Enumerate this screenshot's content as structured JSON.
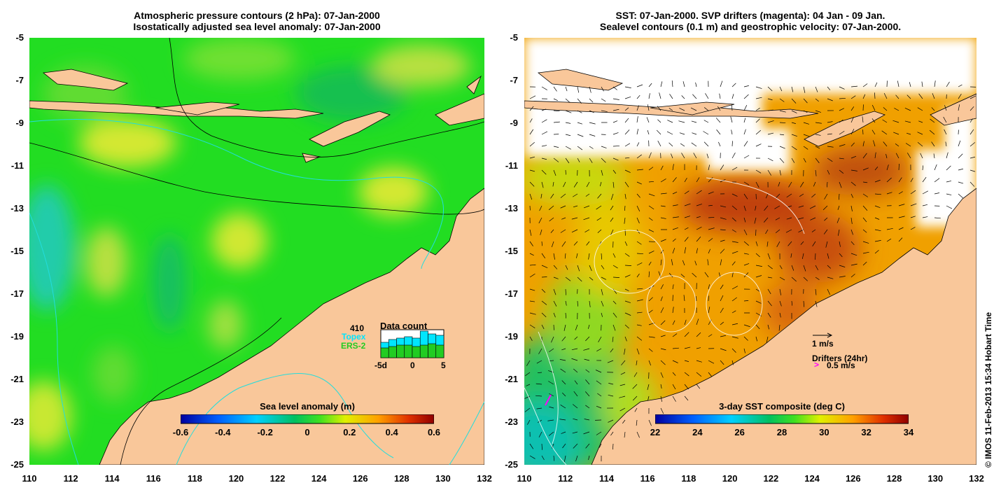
{
  "left_panel": {
    "title_line1": "Atmospheric pressure contours (2 hPa): 07-Jan-2000",
    "title_line2": "Isostatically adjusted sea level anomaly: 07-Jan-2000",
    "colorbar": {
      "title": "Sea level anomaly (m)",
      "ticks": [
        "-0.6",
        "-0.4",
        "-0.2",
        "0",
        "0.2",
        "0.4",
        "0.6"
      ]
    },
    "data_count": {
      "title": "Data count",
      "total": "410",
      "topex_label": "Topex",
      "ers2_label": "ERS-2",
      "x_ticks": [
        "-5d",
        "0",
        "5"
      ],
      "topex_heights": [
        0.55,
        0.65,
        0.7,
        0.75,
        0.7,
        0.95,
        0.85,
        0.8
      ],
      "ers2_heights": [
        0.35,
        0.4,
        0.45,
        0.45,
        0.4,
        0.45,
        0.5,
        0.45
      ]
    },
    "colors": {
      "topex": "#00e5ff",
      "ers2": "#22cc22"
    }
  },
  "right_panel": {
    "title_line1": "SST: 07-Jan-2000. SVP drifters (magenta): 04 Jan - 09 Jan.",
    "title_line2": "Sealevel contours (0.1 m) and geostrophic velocity: 07-Jan-2000.",
    "colorbar": {
      "title": "3-day SST composite (deg C)",
      "ticks": [
        "22",
        "24",
        "26",
        "28",
        "30",
        "32",
        "34"
      ]
    },
    "legend": {
      "velocity_label": "1 m/s",
      "drifters_label": "Drifters (24hr)",
      "drifter_speed_label": "0.5 m/s",
      "drifter_marker": ">"
    }
  },
  "axes": {
    "lat_ticks": [
      "-5",
      "-7",
      "-9",
      "-11",
      "-13",
      "-15",
      "-17",
      "-19",
      "-21",
      "-23",
      "-25"
    ],
    "lon_ticks": [
      "110",
      "112",
      "114",
      "116",
      "118",
      "120",
      "122",
      "124",
      "126",
      "128",
      "130",
      "132"
    ]
  },
  "credit": "© IMOS 11-Feb-2013 15:34 Hobart Time",
  "colors": {
    "land": "#f9c79a",
    "sla_base": "#22dd22",
    "sst_base": "#f0a000"
  }
}
